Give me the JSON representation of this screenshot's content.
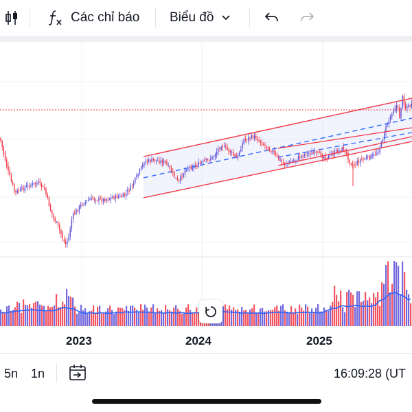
{
  "toolbar": {
    "indicators_label": "Các chỉ báo",
    "chart_type_label": "Biểu đồ"
  },
  "time_axis": {
    "labels": [
      "2023",
      "2024",
      "2025"
    ]
  },
  "bottom_bar": {
    "range_5y": "5n",
    "range_1y": "1n",
    "clock": "16:09:28 (UT"
  },
  "colors": {
    "up": "#5b4fd6",
    "down": "#f23645",
    "channel": "#f23645",
    "midline": "#2962ff",
    "volume_ma": "#2962ff",
    "price_line": "#f23645"
  },
  "icons": [
    "candles-icon",
    "formula-icon",
    "chevron-down-icon",
    "undo-icon",
    "redo-icon",
    "goto-date-icon",
    "reset-icon"
  ]
}
